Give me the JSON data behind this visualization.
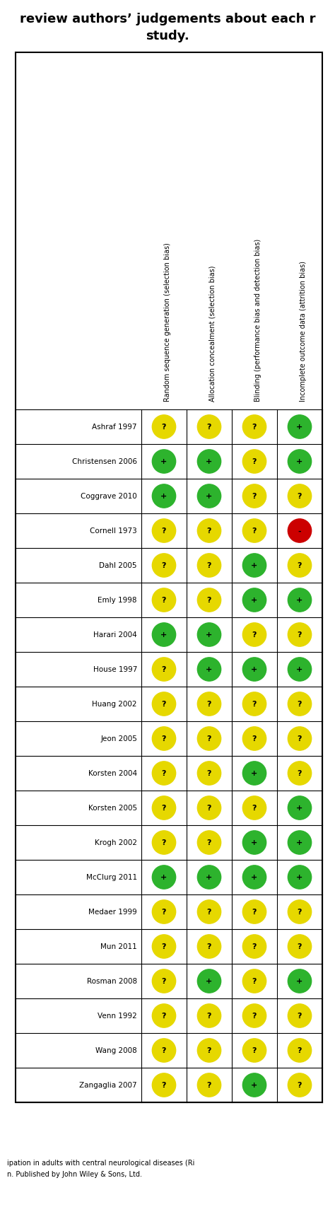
{
  "title_line1": "review authors’ judgements about each r",
  "title_line2": "study.",
  "col_headers": [
    "Random sequence generation (selection bias)",
    "Allocation concealment (selection bias)",
    "Blinding (performance bias and detection bias)",
    "Incomplete outcome data (attrition bias)"
  ],
  "studies": [
    "Ashraf 1997",
    "Christensen 2006",
    "Coggrave 2010",
    "Cornell 1973",
    "Dahl 2005",
    "Emly 1998",
    "Harari 2004",
    "House 1997",
    "Huang 2002",
    "Jeon 2005",
    "Korsten 2004",
    "Korsten 2005",
    "Krogh 2002",
    "McClurg 2011",
    "Medaer 1999",
    "Mun 2011",
    "Rosman 2008",
    "Venn 1992",
    "Wang 2008",
    "Zangaglia 2007"
  ],
  "judgements": [
    [
      "Y",
      "Y",
      "Y",
      "G"
    ],
    [
      "G",
      "G",
      "Y",
      "G"
    ],
    [
      "G",
      "G",
      "Y",
      "Y"
    ],
    [
      "Y",
      "Y",
      "Y",
      "R"
    ],
    [
      "Y",
      "Y",
      "G",
      "Y"
    ],
    [
      "Y",
      "Y",
      "G",
      "G"
    ],
    [
      "G",
      "G",
      "Y",
      "Y"
    ],
    [
      "Y",
      "G",
      "G",
      "G"
    ],
    [
      "Y",
      "Y",
      "Y",
      "Y"
    ],
    [
      "Y",
      "Y",
      "Y",
      "Y"
    ],
    [
      "Y",
      "Y",
      "G",
      "Y"
    ],
    [
      "Y",
      "Y",
      "Y",
      "G"
    ],
    [
      "Y",
      "Y",
      "G",
      "G"
    ],
    [
      "G",
      "G",
      "G",
      "G"
    ],
    [
      "Y",
      "Y",
      "Y",
      "Y"
    ],
    [
      "Y",
      "Y",
      "Y",
      "Y"
    ],
    [
      "Y",
      "G",
      "Y",
      "G"
    ],
    [
      "Y",
      "Y",
      "Y",
      "Y"
    ],
    [
      "Y",
      "Y",
      "Y",
      "Y"
    ],
    [
      "Y",
      "Y",
      "G",
      "Y"
    ]
  ],
  "color_map": {
    "G": "#2db32d",
    "Y": "#e6d800",
    "R": "#cc0000"
  },
  "symbol_map": {
    "G": "+",
    "Y": "?",
    "R": "-"
  },
  "footer_line1": "ipation in adults with central neurological diseases (Ri",
  "footer_line2": "n. Published by John Wiley & Sons, Ltd.",
  "bg_color": "#ffffff"
}
